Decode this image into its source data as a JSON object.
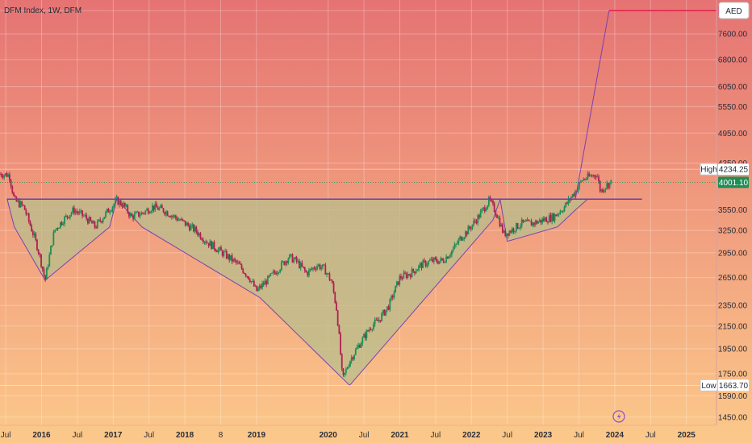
{
  "header": {
    "symbol": "DFM Index, 1W, DFM"
  },
  "currency": "AED",
  "colors": {
    "bg_top": "#e57373",
    "bg_bottom": "#fcc98a",
    "pattern_fill": "#b8bd8c",
    "pattern_stroke": "#7b3fb0",
    "target_line": "#e0204a",
    "neckline": "#6a3fb0",
    "candle_up": "#1e8e55",
    "candle_down": "#b02050",
    "current_badge": "#1e8e55",
    "target_badge": "#e0204a"
  },
  "price_labels": {
    "target": "8402.00",
    "high_tag": "High",
    "high_value": "4234.25",
    "current": "4001.10",
    "low_tag": "Low",
    "low_value": "1663.70"
  },
  "lightning_icon": "lightning-icon",
  "chart_data": {
    "type": "candlestick",
    "title": "DFM Index, 1W, DFM",
    "y_scale": "log",
    "ylim": [
      1400,
      8800
    ],
    "y_ticks": [
      "8402.00",
      "7600.00",
      "6800.00",
      "6050.00",
      "5550.00",
      "4950.00",
      "4350.00",
      "3550.00",
      "3250.00",
      "2950.00",
      "2650.00",
      "2350.00",
      "2150.00",
      "1950.00",
      "1750.00",
      "1590.00",
      "1450.00"
    ],
    "y_tick_values": [
      8402,
      7600,
      6800,
      6050,
      5550,
      4950,
      4350,
      3550,
      3250,
      2950,
      2650,
      2350,
      2150,
      1950,
      1750,
      1590,
      1450
    ],
    "x_ticks": [
      {
        "label": "Jul",
        "t": 2015.5,
        "year": false
      },
      {
        "label": "2016",
        "t": 2016.0,
        "year": true
      },
      {
        "label": "Jul",
        "t": 2016.5,
        "year": false
      },
      {
        "label": "2017",
        "t": 2017.0,
        "year": true
      },
      {
        "label": "Jul",
        "t": 2017.5,
        "year": false
      },
      {
        "label": "2018",
        "t": 2018.0,
        "year": true
      },
      {
        "label": "8",
        "t": 2018.5,
        "year": false
      },
      {
        "label": "2019",
        "t": 2019.0,
        "year": true
      },
      {
        "label": "2020",
        "t": 2020.0,
        "year": true
      },
      {
        "label": "Jul",
        "t": 2020.5,
        "year": false
      },
      {
        "label": "2021",
        "t": 2021.0,
        "year": true
      },
      {
        "label": "Jul",
        "t": 2021.5,
        "year": false
      },
      {
        "label": "2022",
        "t": 2022.0,
        "year": true
      },
      {
        "label": "Jul",
        "t": 2022.5,
        "year": false
      },
      {
        "label": "2023",
        "t": 2023.0,
        "year": true
      },
      {
        "label": "Jul",
        "t": 2023.5,
        "year": false
      },
      {
        "label": "2024",
        "t": 2024.0,
        "year": true
      },
      {
        "label": "Jul",
        "t": 2024.5,
        "year": false
      },
      {
        "label": "2025",
        "t": 2025.0,
        "year": true
      }
    ],
    "xlim": [
      2015.42,
      2025.42
    ],
    "price_path": [
      [
        2015.42,
        4150
      ],
      [
        2015.55,
        4130
      ],
      [
        2015.62,
        3700
      ],
      [
        2015.75,
        3600
      ],
      [
        2015.85,
        3300
      ],
      [
        2015.95,
        3000
      ],
      [
        2016.05,
        2620
      ],
      [
        2016.18,
        3250
      ],
      [
        2016.3,
        3400
      ],
      [
        2016.45,
        3550
      ],
      [
        2016.6,
        3450
      ],
      [
        2016.75,
        3300
      ],
      [
        2016.9,
        3500
      ],
      [
        2017.05,
        3700
      ],
      [
        2017.15,
        3620
      ],
      [
        2017.25,
        3450
      ],
      [
        2017.4,
        3500
      ],
      [
        2017.55,
        3600
      ],
      [
        2017.7,
        3550
      ],
      [
        2017.85,
        3450
      ],
      [
        2018.0,
        3350
      ],
      [
        2018.15,
        3250
      ],
      [
        2018.3,
        3100
      ],
      [
        2018.45,
        3000
      ],
      [
        2018.6,
        2900
      ],
      [
        2018.75,
        2800
      ],
      [
        2018.9,
        2650
      ],
      [
        2019.0,
        2500
      ],
      [
        2019.15,
        2620
      ],
      [
        2019.3,
        2750
      ],
      [
        2019.45,
        2900
      ],
      [
        2019.55,
        2850
      ],
      [
        2019.7,
        2700
      ],
      [
        2019.85,
        2800
      ],
      [
        2019.95,
        2750
      ],
      [
        2020.05,
        2600
      ],
      [
        2020.12,
        2300
      ],
      [
        2020.2,
        1700
      ],
      [
        2020.3,
        1850
      ],
      [
        2020.45,
        2000
      ],
      [
        2020.6,
        2150
      ],
      [
        2020.7,
        2200
      ],
      [
        2020.85,
        2350
      ],
      [
        2021.0,
        2650
      ],
      [
        2021.15,
        2700
      ],
      [
        2021.3,
        2800
      ],
      [
        2021.45,
        2850
      ],
      [
        2021.6,
        2850
      ],
      [
        2021.75,
        3000
      ],
      [
        2021.85,
        3150
      ],
      [
        2021.95,
        3250
      ],
      [
        2022.1,
        3450
      ],
      [
        2022.25,
        3700
      ],
      [
        2022.35,
        3500
      ],
      [
        2022.45,
        3200
      ],
      [
        2022.55,
        3250
      ],
      [
        2022.7,
        3350
      ],
      [
        2022.85,
        3350
      ],
      [
        2023.0,
        3400
      ],
      [
        2023.15,
        3450
      ],
      [
        2023.3,
        3600
      ],
      [
        2023.45,
        3850
      ],
      [
        2023.55,
        4050
      ],
      [
        2023.65,
        4100
      ],
      [
        2023.75,
        4150
      ],
      [
        2023.8,
        3850
      ],
      [
        2023.88,
        3950
      ],
      [
        2023.95,
        4001
      ]
    ],
    "pattern_polygon": [
      [
        2015.52,
        3720
      ],
      [
        2015.62,
        3300
      ],
      [
        2016.05,
        2620
      ],
      [
        2016.95,
        3300
      ],
      [
        2017.05,
        3720
      ],
      [
        2017.4,
        3300
      ],
      [
        2019.05,
        2430
      ],
      [
        2020.3,
        1663.7
      ],
      [
        2022.3,
        3400
      ],
      [
        2022.4,
        3720
      ],
      [
        2022.5,
        3100
      ],
      [
        2023.2,
        3300
      ],
      [
        2023.45,
        3550
      ],
      [
        2023.62,
        3720
      ]
    ],
    "neckline": {
      "t_start": 2015.52,
      "t_end": 2024.38,
      "value": 3720
    },
    "target_path": [
      [
        2023.45,
        3720
      ],
      [
        2023.92,
        8402
      ],
      [
        2025.42,
        8402
      ]
    ],
    "current_line_value": 4001.1,
    "high_line_value": 4234.25,
    "low_line_value": 1663.7
  }
}
